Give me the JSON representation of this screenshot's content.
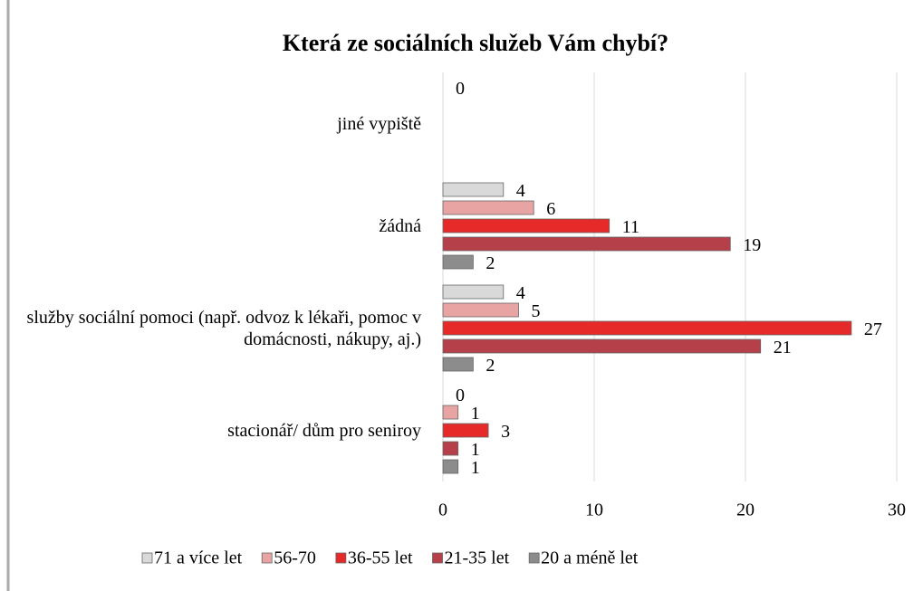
{
  "chart_data": {
    "type": "bar",
    "orientation": "horizontal",
    "title": "Která ze sociálních služeb Vám chybí?",
    "categories": [
      "jiné vypiště",
      "žádná",
      "služby sociální pomoci (např. odvoz k lékaři, pomoc v domácnosti, nákupy, aj.)",
      "stacionář/ dům pro seniroy"
    ],
    "series": [
      {
        "name": "71 a více let",
        "color": "#d9d9d9",
        "values": [
          0,
          4,
          4,
          0
        ]
      },
      {
        "name": "56-70",
        "color": "#e8a3a3",
        "values": [
          null,
          6,
          5,
          1
        ]
      },
      {
        "name": "36-55 let",
        "color": "#e62a2a",
        "values": [
          null,
          11,
          27,
          3
        ]
      },
      {
        "name": "21-35 let",
        "color": "#b5404a",
        "values": [
          null,
          19,
          21,
          1
        ]
      },
      {
        "name": "20 a méně let",
        "color": "#8c8c8c",
        "values": [
          null,
          2,
          2,
          1
        ]
      }
    ],
    "xlim": [
      0,
      30
    ],
    "xticks": [
      0,
      10,
      20,
      30
    ],
    "grid": true,
    "legend": "bottom"
  }
}
